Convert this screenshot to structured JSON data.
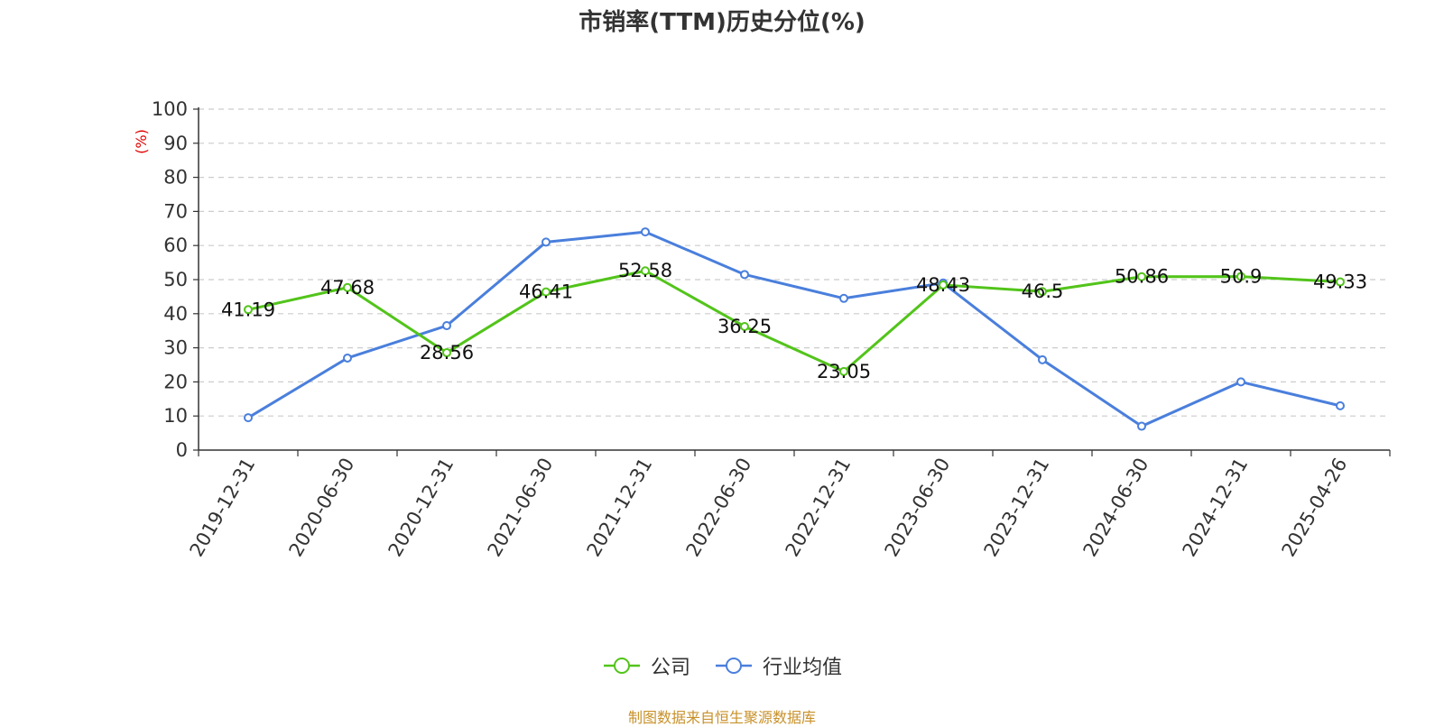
{
  "chart_data": {
    "type": "line",
    "title": "市销率(TTM)历史分位(%)",
    "ylabel": "(%)",
    "ylim": [
      0,
      100
    ],
    "yticks": [
      0,
      10,
      20,
      30,
      40,
      50,
      60,
      70,
      80,
      90,
      100
    ],
    "categories": [
      "2019-12-31",
      "2020-06-30",
      "2020-12-31",
      "2021-06-30",
      "2021-12-31",
      "2022-06-30",
      "2022-12-31",
      "2023-06-30",
      "2023-12-31",
      "2024-06-30",
      "2024-12-31",
      "2025-04-26"
    ],
    "series": [
      {
        "name": "公司",
        "color": "#52c41a",
        "show_labels": true,
        "values": [
          41.19,
          47.68,
          28.56,
          46.41,
          52.58,
          36.25,
          23.05,
          48.43,
          46.5,
          50.86,
          50.9,
          49.33
        ]
      },
      {
        "name": "行业均值",
        "color": "#4a7fdc",
        "show_labels": false,
        "values": [
          9.5,
          27,
          36.5,
          61,
          64,
          51.5,
          44.5,
          49,
          26.5,
          7,
          20,
          13
        ]
      }
    ],
    "grid": true,
    "legend_position": "bottom-center"
  },
  "source_note": "制图数据来自恒生聚源数据库"
}
